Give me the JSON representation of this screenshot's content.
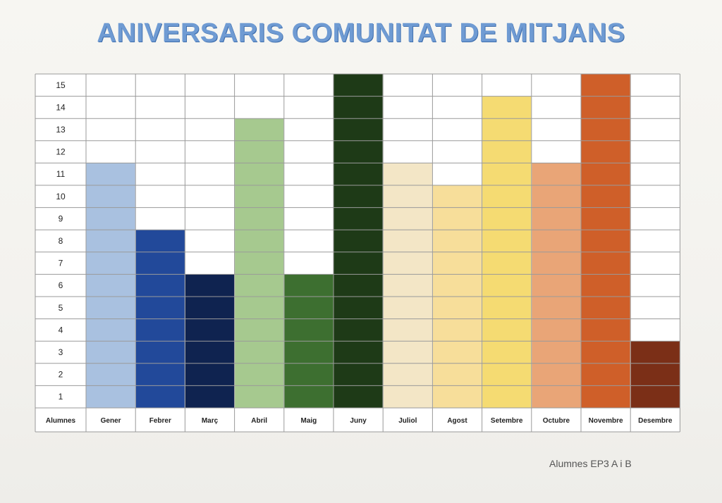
{
  "title": "ANIVERSARIS COMUNITAT DE MITJANS",
  "footer": "Alumnes EP3 A i B",
  "chart_data": {
    "type": "bar",
    "title": "ANIVERSARIS COMUNITAT DE MITJANS",
    "xlabel": "Alumnes",
    "ylabel": "",
    "ylim": [
      0,
      15
    ],
    "yticks": [
      1,
      2,
      3,
      4,
      5,
      6,
      7,
      8,
      9,
      10,
      11,
      12,
      13,
      14,
      15
    ],
    "grid": true,
    "categories": [
      "Gener",
      "Febrer",
      "Març",
      "Abril",
      "Maig",
      "Juny",
      "Juliol",
      "Agost",
      "Setembre",
      "Octubre",
      "Novembre",
      "Desembre"
    ],
    "values": [
      11,
      8,
      6,
      13,
      6,
      15,
      11,
      10,
      14,
      11,
      15,
      3
    ],
    "colors": [
      "#a9c1e0",
      "#22499a",
      "#0f2350",
      "#a6c98f",
      "#3d6f30",
      "#1e3a17",
      "#f3e6c6",
      "#f7de9a",
      "#f5db72",
      "#e9a577",
      "#cf5f29",
      "#7b2f17"
    ]
  }
}
